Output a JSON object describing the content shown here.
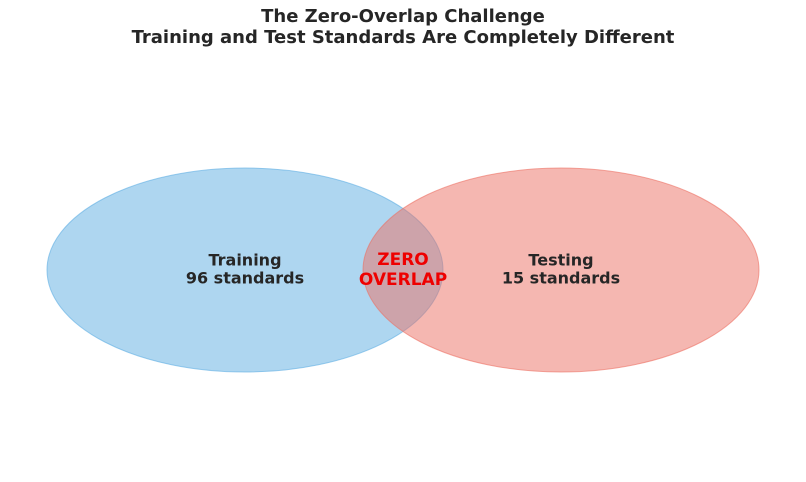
{
  "title": [
    "The Zero-Overlap Challenge",
    "Training and Test Standards Are Completely Different"
  ],
  "sets": [
    {
      "label": "Training",
      "count": "96 standards"
    },
    {
      "label": "Testing",
      "count": "15 standards"
    }
  ],
  "overlap": [
    "ZERO",
    "OVERLAP"
  ]
}
